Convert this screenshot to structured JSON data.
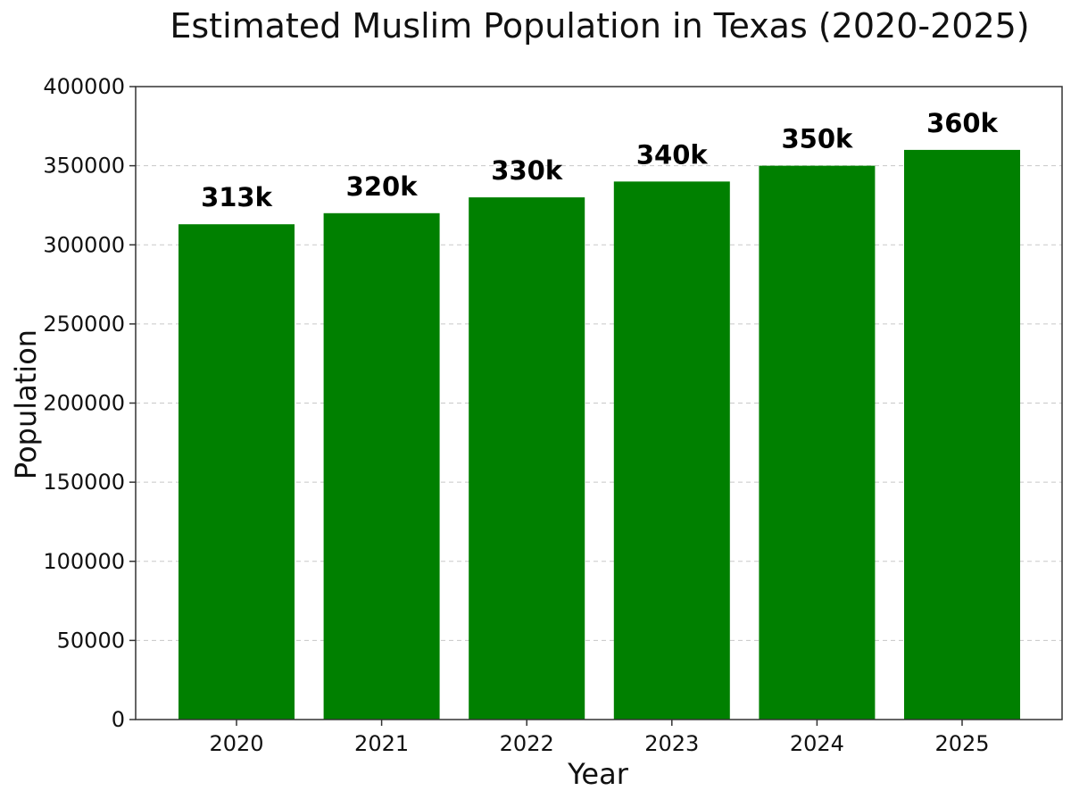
{
  "chart_data": {
    "type": "bar",
    "title": "Estimated Muslim Population in Texas (2020-2025)",
    "xlabel": "Year",
    "ylabel": "Population",
    "categories": [
      "2020",
      "2021",
      "2022",
      "2023",
      "2024",
      "2025"
    ],
    "values": [
      313000,
      320000,
      330000,
      340000,
      350000,
      360000
    ],
    "data_labels": [
      "313k",
      "320k",
      "330k",
      "340k",
      "350k",
      "360k"
    ],
    "ylim": [
      0,
      400000
    ],
    "yticks": [
      0,
      50000,
      100000,
      150000,
      200000,
      250000,
      300000,
      350000,
      400000
    ],
    "ytick_labels": [
      "0",
      "50000",
      "100000",
      "150000",
      "200000",
      "250000",
      "300000",
      "350000",
      "400000"
    ],
    "grid": "y-dashed",
    "bar_color": "#008000"
  }
}
